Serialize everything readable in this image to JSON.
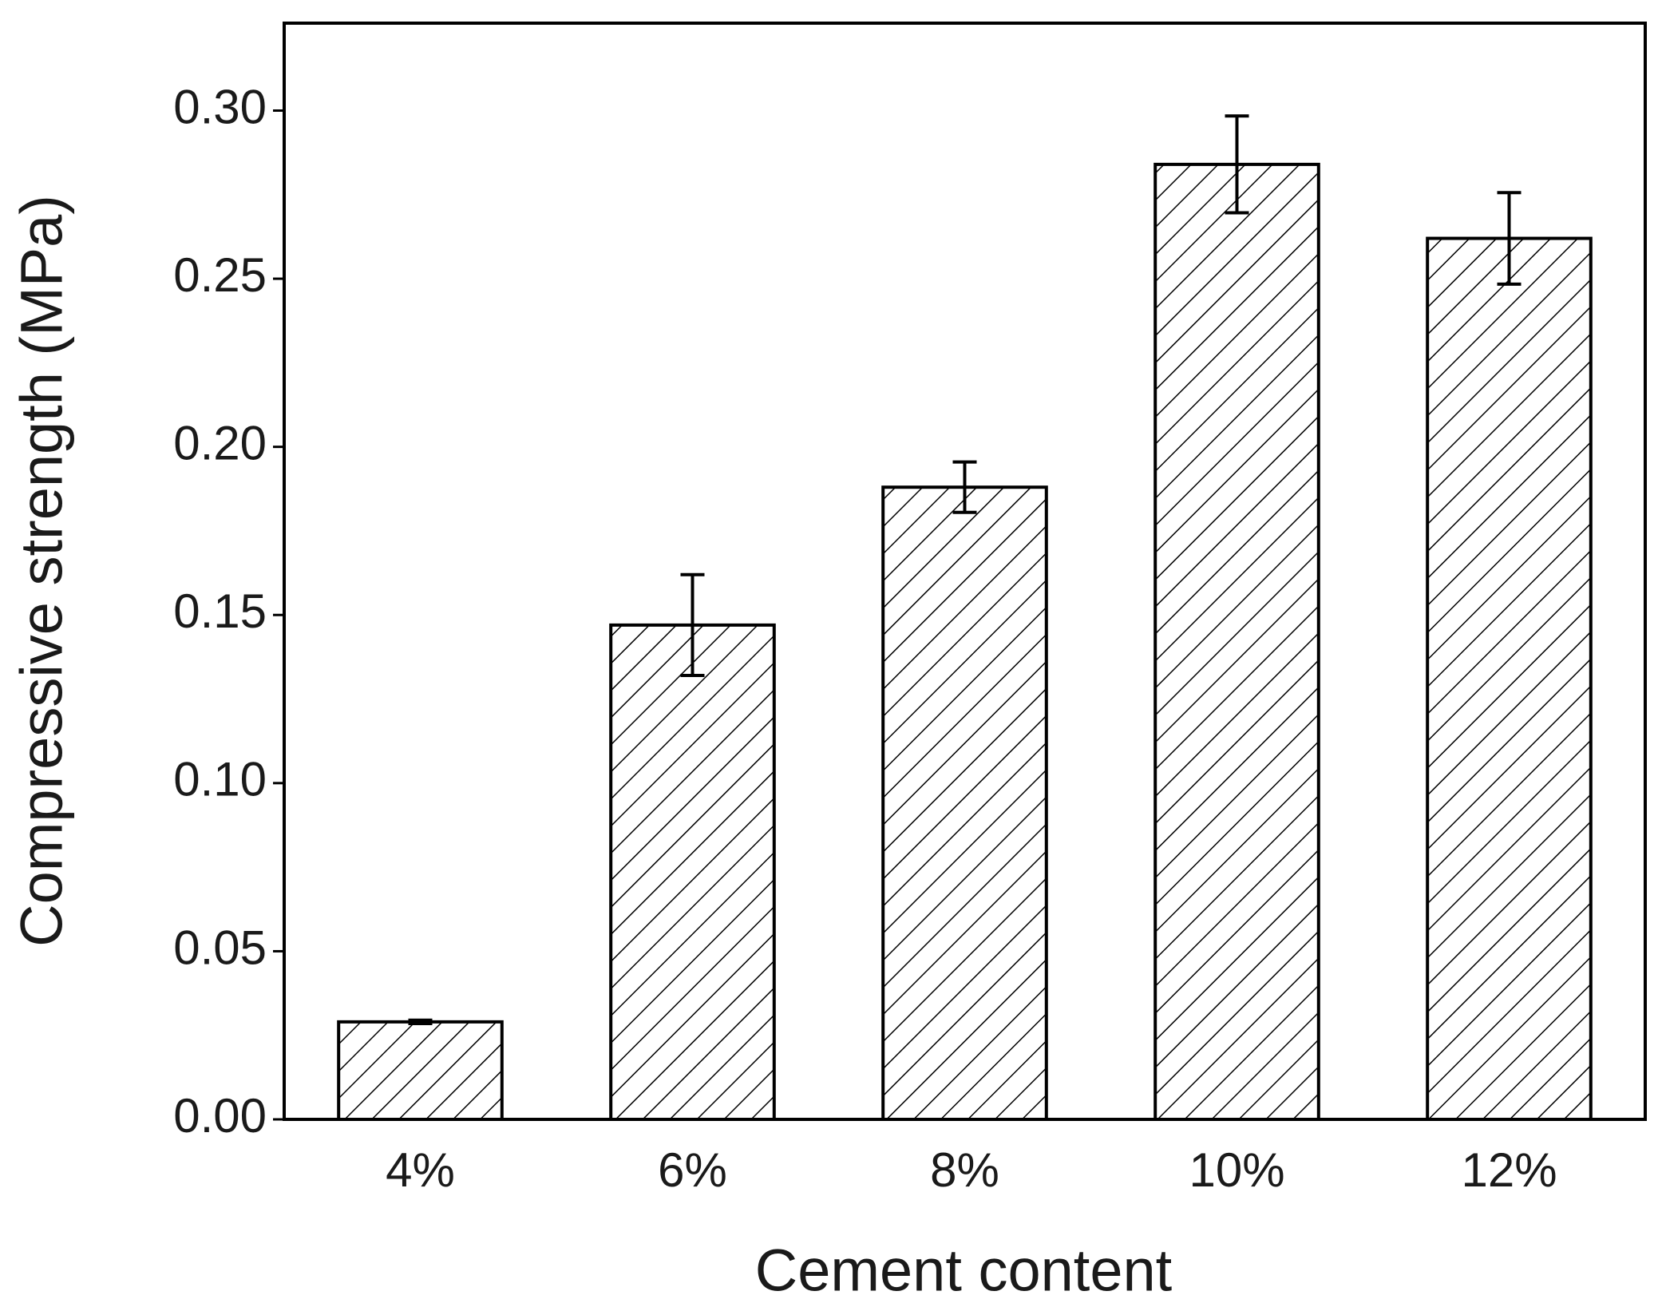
{
  "chart_data": {
    "type": "bar",
    "x_label": "Cement content",
    "y_label": "Compressive strength (MPa)",
    "categories": [
      "4%",
      "6%",
      "8%",
      "10%",
      "12%"
    ],
    "values": [
      0.029,
      0.147,
      0.188,
      0.284,
      0.262
    ],
    "errors": [
      0.0005,
      0.015,
      0.0075,
      0.0144,
      0.0136
    ],
    "color": "#000000",
    "ylim": [
      0,
      0.326
    ],
    "yticks": [
      {
        "value": 0,
        "label": "0.00"
      },
      {
        "value": 0.05,
        "label": "0.05"
      },
      {
        "value": 0.1,
        "label": "0.10"
      },
      {
        "value": 0.15,
        "label": "0.15"
      },
      {
        "value": 0.2,
        "label": "0.20"
      },
      {
        "value": 0.25,
        "label": "0.25"
      },
      {
        "value": 0.3,
        "label": "0.30"
      }
    ],
    "grid": false
  }
}
